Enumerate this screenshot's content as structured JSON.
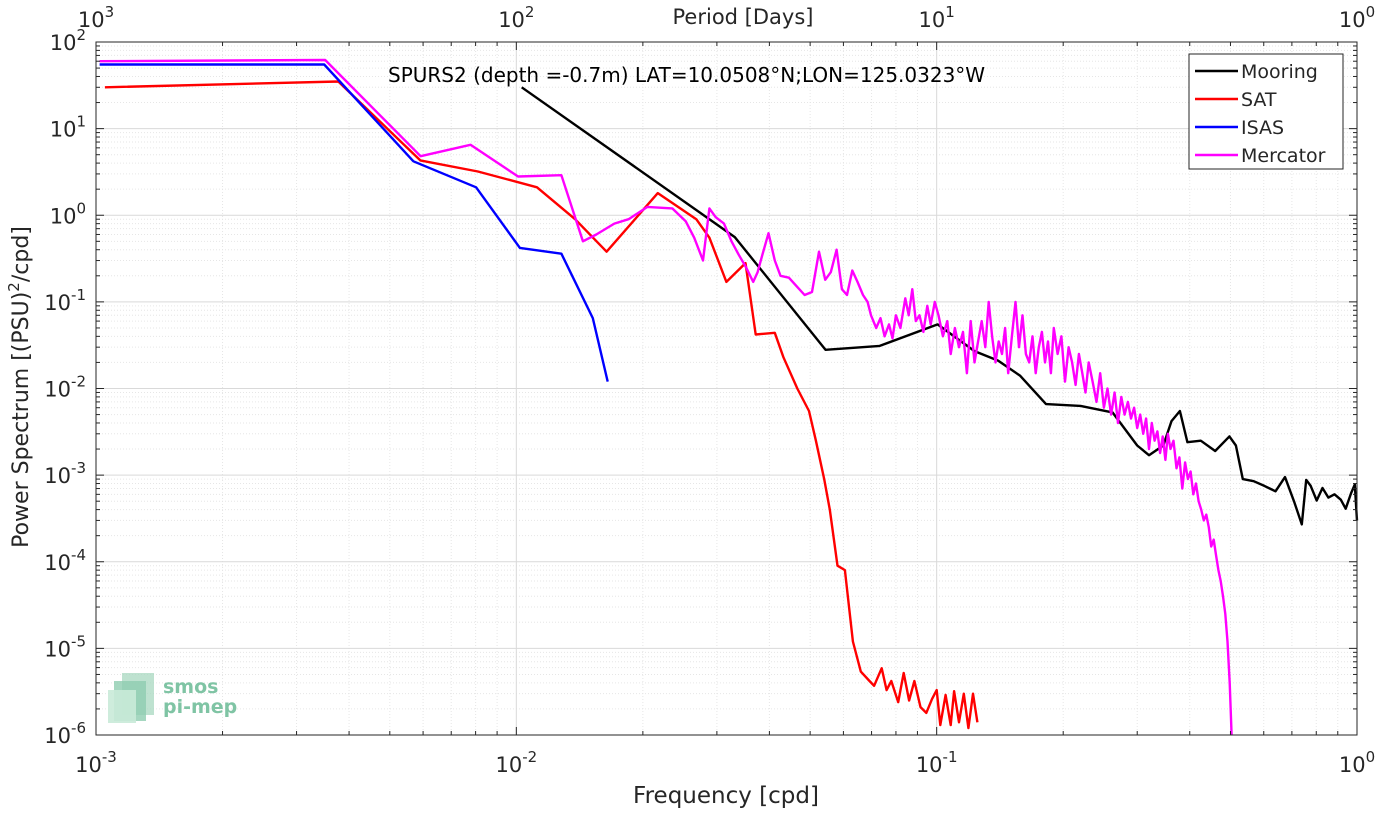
{
  "chart_data": {
    "type": "line",
    "title": "SPURS2 (depth =-0.7m) LAT=10.0508°N;LON=125.0323°W",
    "xlabel": "Frequency [cpd]",
    "ylabel": "Power Spectrum [(PSU)",
    "ylabel_sup": "2",
    "ylabel_tail": "/cpd]",
    "top_xlabel": "Period [Days]",
    "x_scale": "log",
    "y_scale": "log",
    "xlim": [
      0.001,
      1
    ],
    "ylim": [
      1e-06,
      100
    ],
    "grid": true,
    "legend_position": "top-right",
    "x_ticks": [
      {
        "value": 0.001,
        "base": "10",
        "exp": "-3"
      },
      {
        "value": 0.01,
        "base": "10",
        "exp": "-2"
      },
      {
        "value": 0.1,
        "base": "10",
        "exp": "-1"
      },
      {
        "value": 1,
        "base": "10",
        "exp": "0"
      }
    ],
    "y_ticks": [
      {
        "value": 100,
        "base": "10",
        "exp": "2"
      },
      {
        "value": 10,
        "base": "10",
        "exp": "1"
      },
      {
        "value": 1,
        "base": "10",
        "exp": "0"
      },
      {
        "value": 0.1,
        "base": "10",
        "exp": "-1"
      },
      {
        "value": 0.01,
        "base": "10",
        "exp": "-2"
      },
      {
        "value": 0.001,
        "base": "10",
        "exp": "-3"
      },
      {
        "value": 0.0001,
        "base": "10",
        "exp": "-4"
      },
      {
        "value": 1e-05,
        "base": "10",
        "exp": "-5"
      },
      {
        "value": 1e-06,
        "base": "10",
        "exp": "-6"
      }
    ],
    "top_ticks": [
      {
        "value": 0.001,
        "base": "10",
        "exp": "3"
      },
      {
        "value": 0.01,
        "base": "10",
        "exp": "2"
      },
      {
        "value": 0.1,
        "base": "10",
        "exp": "1"
      },
      {
        "value": 1,
        "base": "10",
        "exp": "0"
      }
    ],
    "series": [
      {
        "name": "Mooring",
        "color": "#000000",
        "points": [
          [
            0.0103,
            30
          ],
          [
            0.0331,
            0.56
          ],
          [
            0.0544,
            0.028
          ],
          [
            0.0732,
            0.031
          ],
          [
            0.1005,
            0.055
          ],
          [
            0.123,
            0.027
          ],
          [
            0.14,
            0.021
          ],
          [
            0.158,
            0.014
          ],
          [
            0.182,
            0.0066
          ],
          [
            0.22,
            0.0063
          ],
          [
            0.262,
            0.0053
          ],
          [
            0.3,
            0.0022
          ],
          [
            0.32,
            0.0017
          ],
          [
            0.346,
            0.0022
          ],
          [
            0.362,
            0.0042
          ],
          [
            0.379,
            0.0055
          ],
          [
            0.395,
            0.0024
          ],
          [
            0.425,
            0.0025
          ],
          [
            0.46,
            0.0019
          ],
          [
            0.497,
            0.0028
          ],
          [
            0.515,
            0.0022
          ],
          [
            0.535,
            0.0009
          ],
          [
            0.568,
            0.00085
          ],
          [
            0.602,
            0.00075
          ],
          [
            0.64,
            0.00065
          ],
          [
            0.674,
            0.00095
          ],
          [
            0.71,
            0.00048
          ],
          [
            0.739,
            0.00027
          ],
          [
            0.757,
            0.00088
          ],
          [
            0.776,
            0.00075
          ],
          [
            0.802,
            0.00051
          ],
          [
            0.828,
            0.00071
          ],
          [
            0.855,
            0.00055
          ],
          [
            0.884,
            0.0006
          ],
          [
            0.915,
            0.00052
          ],
          [
            0.94,
            0.00041
          ],
          [
            0.968,
            0.00062
          ],
          [
            0.988,
            0.00078
          ],
          [
            1.0,
            0.0003
          ]
        ]
      },
      {
        "name": "SAT",
        "color": "#ff0000",
        "points": [
          [
            0.00105,
            30
          ],
          [
            0.00377,
            35
          ],
          [
            0.00591,
            4.3
          ],
          [
            0.0081,
            3.2
          ],
          [
            0.0112,
            2.1
          ],
          [
            0.0138,
            0.9
          ],
          [
            0.0164,
            0.38
          ],
          [
            0.0217,
            1.8
          ],
          [
            0.0268,
            0.9
          ],
          [
            0.0288,
            0.55
          ],
          [
            0.0316,
            0.17
          ],
          [
            0.0351,
            0.28
          ],
          [
            0.0371,
            0.042
          ],
          [
            0.0412,
            0.044
          ],
          [
            0.0432,
            0.023
          ],
          [
            0.0466,
            0.01
          ],
          [
            0.0497,
            0.0055
          ],
          [
            0.0516,
            0.0025
          ],
          [
            0.054,
            0.0009
          ],
          [
            0.0557,
            0.0004
          ],
          [
            0.0581,
            9e-05
          ],
          [
            0.0605,
            8e-05
          ],
          [
            0.0632,
            1.2e-05
          ],
          [
            0.066,
            5.4e-06
          ],
          [
            0.0692,
            4.2e-06
          ],
          [
            0.071,
            3.7e-06
          ],
          [
            0.074,
            5.9e-06
          ],
          [
            0.076,
            3.3e-06
          ],
          [
            0.078,
            4.2e-06
          ],
          [
            0.081,
            2.4e-06
          ],
          [
            0.0835,
            5.2e-06
          ],
          [
            0.086,
            2.5e-06
          ],
          [
            0.0885,
            4.2e-06
          ],
          [
            0.0915,
            2.1e-06
          ],
          [
            0.0945,
            1.8e-06
          ],
          [
            0.0975,
            2.6e-06
          ],
          [
            0.1,
            3.3e-06
          ],
          [
            0.102,
            1.3e-06
          ],
          [
            0.105,
            2.9e-06
          ],
          [
            0.108,
            1.3e-06
          ],
          [
            0.11,
            3.2e-06
          ],
          [
            0.113,
            1.4e-06
          ],
          [
            0.116,
            3e-06
          ],
          [
            0.119,
            1.2e-06
          ],
          [
            0.122,
            3e-06
          ],
          [
            0.125,
            1.4e-06
          ]
        ]
      },
      {
        "name": "ISAS",
        "color": "#0000ff",
        "points": [
          [
            0.00102,
            55
          ],
          [
            0.00349,
            55
          ],
          [
            0.00569,
            4.2
          ],
          [
            0.00802,
            2.1
          ],
          [
            0.0102,
            0.42
          ],
          [
            0.0128,
            0.36
          ],
          [
            0.0152,
            0.065
          ],
          [
            0.0165,
            0.012
          ]
        ]
      },
      {
        "name": "Mercator",
        "color": "#ff00ff",
        "points": [
          [
            0.00102,
            60
          ],
          [
            0.00351,
            62
          ],
          [
            0.00592,
            4.8
          ],
          [
            0.00778,
            6.5
          ],
          [
            0.0101,
            2.8
          ],
          [
            0.0128,
            2.9
          ],
          [
            0.0144,
            0.5
          ],
          [
            0.0155,
            0.6
          ],
          [
            0.0171,
            0.8
          ],
          [
            0.0185,
            0.9
          ],
          [
            0.0205,
            1.25
          ],
          [
            0.0235,
            1.2
          ],
          [
            0.0253,
            0.85
          ],
          [
            0.0265,
            0.55
          ],
          [
            0.0278,
            0.3
          ],
          [
            0.0288,
            1.2
          ],
          [
            0.0298,
            0.95
          ],
          [
            0.0312,
            0.8
          ],
          [
            0.0325,
            0.5
          ],
          [
            0.0338,
            0.35
          ],
          [
            0.0352,
            0.25
          ],
          [
            0.0366,
            0.17
          ],
          [
            0.0375,
            0.22
          ],
          [
            0.0385,
            0.35
          ],
          [
            0.0398,
            0.62
          ],
          [
            0.0412,
            0.3
          ],
          [
            0.0425,
            0.2
          ],
          [
            0.0445,
            0.19
          ],
          [
            0.0465,
            0.15
          ],
          [
            0.0485,
            0.12
          ],
          [
            0.0505,
            0.13
          ],
          [
            0.0525,
            0.38
          ],
          [
            0.0543,
            0.18
          ],
          [
            0.056,
            0.22
          ],
          [
            0.0578,
            0.4
          ],
          [
            0.0595,
            0.14
          ],
          [
            0.0612,
            0.12
          ],
          [
            0.063,
            0.23
          ],
          [
            0.0648,
            0.17
          ],
          [
            0.0668,
            0.12
          ],
          [
            0.0685,
            0.1
          ],
          [
            0.0698,
            0.07
          ],
          [
            0.0718,
            0.05
          ],
          [
            0.0735,
            0.065
          ],
          [
            0.0752,
            0.04
          ],
          [
            0.077,
            0.055
          ],
          [
            0.0785,
            0.038
          ],
          [
            0.08,
            0.07
          ],
          [
            0.082,
            0.05
          ],
          [
            0.0842,
            0.11
          ],
          [
            0.0858,
            0.07
          ],
          [
            0.0875,
            0.14
          ],
          [
            0.0892,
            0.06
          ],
          [
            0.091,
            0.07
          ],
          [
            0.093,
            0.045
          ],
          [
            0.095,
            0.09
          ],
          [
            0.0968,
            0.055
          ],
          [
            0.099,
            0.1
          ],
          [
            0.101,
            0.07
          ],
          [
            0.1035,
            0.04
          ],
          [
            0.106,
            0.06
          ],
          [
            0.108,
            0.025
          ],
          [
            0.1105,
            0.05
          ],
          [
            0.113,
            0.03
          ],
          [
            0.1155,
            0.045
          ],
          [
            0.118,
            0.015
          ],
          [
            0.1205,
            0.06
          ],
          [
            0.123,
            0.02
          ],
          [
            0.1255,
            0.035
          ],
          [
            0.128,
            0.06
          ],
          [
            0.1305,
            0.03
          ],
          [
            0.133,
            0.1
          ],
          [
            0.1355,
            0.04
          ],
          [
            0.138,
            0.02
          ],
          [
            0.1405,
            0.035
          ],
          [
            0.143,
            0.025
          ],
          [
            0.1455,
            0.05
          ],
          [
            0.148,
            0.015
          ],
          [
            0.151,
            0.04
          ],
          [
            0.154,
            0.1
          ],
          [
            0.157,
            0.03
          ],
          [
            0.16,
            0.07
          ],
          [
            0.163,
            0.025
          ],
          [
            0.166,
            0.02
          ],
          [
            0.169,
            0.04
          ],
          [
            0.172,
            0.015
          ],
          [
            0.175,
            0.03
          ],
          [
            0.178,
            0.045
          ],
          [
            0.181,
            0.02
          ],
          [
            0.184,
            0.035
          ],
          [
            0.187,
            0.015
          ],
          [
            0.19,
            0.05
          ],
          [
            0.194,
            0.025
          ],
          [
            0.198,
            0.04
          ],
          [
            0.202,
            0.012
          ],
          [
            0.206,
            0.03
          ],
          [
            0.21,
            0.02
          ],
          [
            0.214,
            0.011
          ],
          [
            0.218,
            0.025
          ],
          [
            0.222,
            0.015
          ],
          [
            0.226,
            0.009
          ],
          [
            0.23,
            0.02
          ],
          [
            0.235,
            0.012
          ],
          [
            0.24,
            0.007
          ],
          [
            0.245,
            0.015
          ],
          [
            0.25,
            0.006
          ],
          [
            0.255,
            0.01
          ],
          [
            0.26,
            0.005
          ],
          [
            0.265,
            0.009
          ],
          [
            0.27,
            0.004
          ],
          [
            0.275,
            0.008
          ],
          [
            0.28,
            0.005
          ],
          [
            0.285,
            0.007
          ],
          [
            0.29,
            0.0045
          ],
          [
            0.295,
            0.006
          ],
          [
            0.3,
            0.0035
          ],
          [
            0.305,
            0.005
          ],
          [
            0.31,
            0.003
          ],
          [
            0.315,
            0.0045
          ],
          [
            0.32,
            0.002
          ],
          [
            0.325,
            0.004
          ],
          [
            0.33,
            0.0025
          ],
          [
            0.335,
            0.0032
          ],
          [
            0.34,
            0.0018
          ],
          [
            0.345,
            0.0028
          ],
          [
            0.35,
            0.0015
          ],
          [
            0.355,
            0.003
          ],
          [
            0.36,
            0.002
          ],
          [
            0.366,
            0.0025
          ],
          [
            0.372,
            0.0012
          ],
          [
            0.378,
            0.0016
          ],
          [
            0.384,
            0.0007
          ],
          [
            0.39,
            0.0014
          ],
          [
            0.396,
            0.0009
          ],
          [
            0.402,
            0.0011
          ],
          [
            0.408,
            0.0006
          ],
          [
            0.414,
            0.0008
          ],
          [
            0.42,
            0.0005
          ],
          [
            0.426,
            0.0004
          ],
          [
            0.432,
            0.0003
          ],
          [
            0.438,
            0.00035
          ],
          [
            0.444,
            0.00025
          ],
          [
            0.45,
            0.00015
          ],
          [
            0.456,
            0.00018
          ],
          [
            0.462,
            0.00012
          ],
          [
            0.468,
            8e-05
          ],
          [
            0.474,
            6e-05
          ],
          [
            0.48,
            4e-05
          ],
          [
            0.486,
            2.5e-05
          ],
          [
            0.492,
            1.2e-05
          ],
          [
            0.498,
            4e-06
          ],
          [
            0.503,
            1e-06
          ]
        ]
      }
    ]
  },
  "watermark": {
    "line1": "smos",
    "line2": "pi-mep",
    "color": "#7fc4a4"
  }
}
